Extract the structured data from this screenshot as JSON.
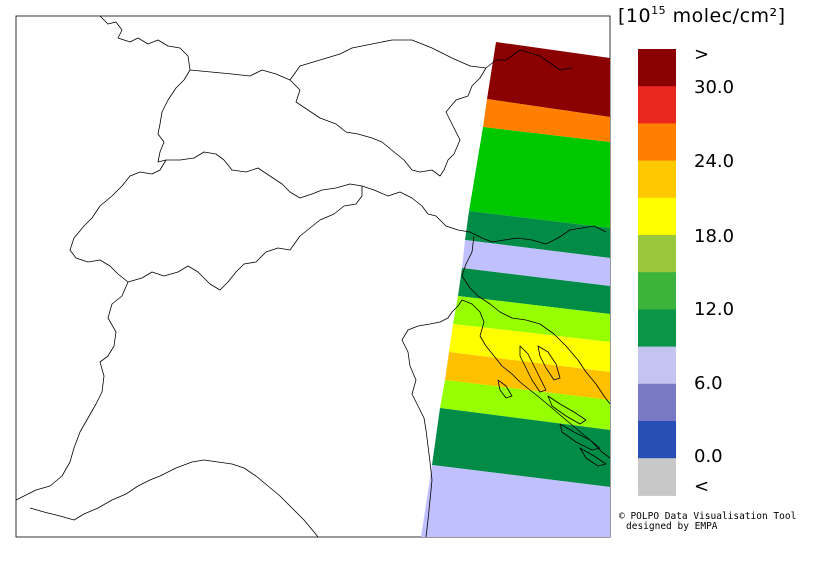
{
  "legend": {
    "unit_prefix": "[10",
    "unit_exponent": "15",
    "unit_suffix": " molec/cm²]",
    "ticks": [
      ">",
      "30.0",
      "24.0",
      "18.0",
      "12.0",
      "6.0",
      "0.0",
      "<"
    ],
    "color_classes": [
      "#8b0000",
      "#e8281e",
      "#ff8000",
      "#ffc800",
      "#ffff00",
      "#9ac83c",
      "#3cb43c",
      "#0a9646",
      "#c4c4f0",
      "#7878c4",
      "#2850b4",
      "#c8c8c8"
    ]
  },
  "credit": {
    "line1": "© POLPO Data Visualisation Tool",
    "line2": "designed by EMPA"
  },
  "swath_classes": [
    "#8b0000",
    "#ff8000",
    "#00c800",
    "#008c46",
    "#c0c0ff",
    "#008c46",
    "#96ff00",
    "#ffff00",
    "#ffc000",
    "#96ff00",
    "#008c46",
    "#c0c0ff"
  ]
}
